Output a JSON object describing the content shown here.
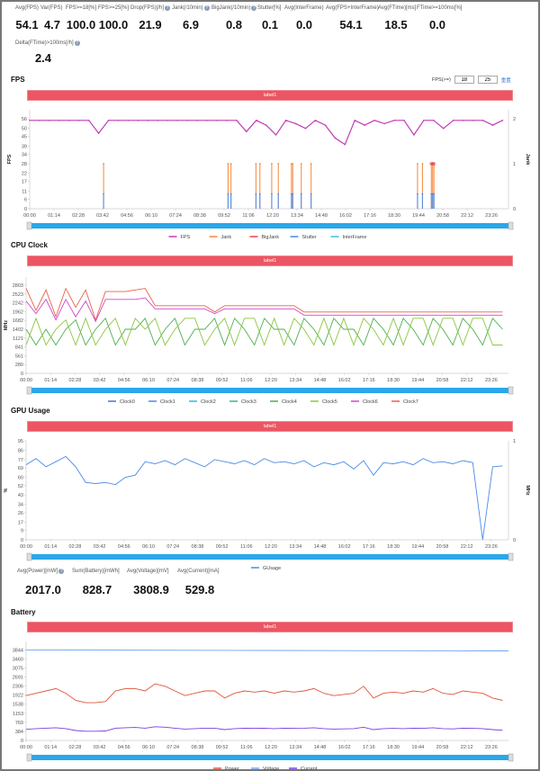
{
  "stats_top": [
    {
      "label": "Avg(FPS)",
      "value": "54.1"
    },
    {
      "label": "Var(FPS)",
      "value": "4.7"
    },
    {
      "label": "FPS>=18[%]",
      "value": "100.0"
    },
    {
      "label": "FPS>=25[%]",
      "value": "100.0"
    },
    {
      "label": "Drop(FPS)[/h]",
      "value": "21.9",
      "help": true
    },
    {
      "label": "Jank(/10min)",
      "value": "6.9",
      "help": true
    },
    {
      "label": "BigJank(/10min)",
      "value": "0.8",
      "help": true
    },
    {
      "label": "Stutter[%]",
      "value": "0.1"
    },
    {
      "label": "Avg(InterFrame)",
      "value": "0.0"
    },
    {
      "label": "Avg(FPS+InterFrame)",
      "value": "54.1"
    },
    {
      "label": "Avg(FTime)[ms]",
      "value": "18.5"
    },
    {
      "label": "FTime>=100ms[%]",
      "value": "0.0"
    },
    {
      "label": "Delta(FTime)>100ms[/h]",
      "value": "2.4",
      "help": true
    }
  ],
  "stats_battery": [
    {
      "label": "Avg(Power)[mW]",
      "value": "2017.0",
      "help": true
    },
    {
      "label": "Sum(Battery)[mWh]",
      "value": "828.7"
    },
    {
      "label": "Avg(Voltage)[mV]",
      "value": "3808.9"
    },
    {
      "label": "Avg(Current)[mA]",
      "value": "529.8"
    }
  ],
  "fps_controls": {
    "label": "FPS(>=)",
    "low": "18",
    "high": "25",
    "reset": "重置"
  },
  "sections": {
    "fps": "FPS",
    "cpu": "CPU Clock",
    "gpu": "GPU Usage",
    "battery": "Battery",
    "label_bar": "label1"
  },
  "chart_data": [
    {
      "id": "fps",
      "type": "line",
      "title": "FPS",
      "ylabel": "FPS",
      "y2label": "Jank",
      "ylim": [
        0,
        61.6
      ],
      "y2lim": [
        0,
        2.2
      ],
      "yticks": [
        0,
        6,
        11,
        17,
        22,
        28,
        34,
        39,
        45,
        50,
        56
      ],
      "y2ticks": [
        0,
        1,
        2
      ],
      "xlim_min": [
        0,
        1458
      ],
      "xticks": [
        "00:00",
        "01:14",
        "02:28",
        "03:42",
        "04:56",
        "06:10",
        "07:24",
        "08:38",
        "09:52",
        "11:06",
        "12:20",
        "13:34",
        "14:48",
        "16:02",
        "17:16",
        "18:30",
        "19:44",
        "20:58",
        "22:12",
        "23:26"
      ],
      "x_step_min": 30,
      "series": [
        {
          "name": "FPS",
          "color": "#c23bb5",
          "values": [
            55,
            55,
            55,
            55,
            55,
            55,
            55,
            47,
            55,
            55,
            55,
            55,
            55,
            55,
            55,
            55,
            55,
            55,
            55,
            55,
            55,
            55,
            48,
            55,
            52,
            46,
            55,
            53,
            50,
            55,
            52,
            44,
            40,
            55,
            52,
            55,
            53,
            55,
            55,
            46,
            55,
            55,
            50,
            55,
            55,
            55,
            55,
            52,
            55
          ]
        },
        {
          "name": "Jank",
          "color": "#f5873a",
          "axis": "right",
          "spikes_min": [
            225,
            604,
            613,
            689,
            701,
            737,
            757,
            797,
            801,
            827,
            857,
            1181,
            1196,
            1223,
            1227,
            1231
          ],
          "spike_value": 1
        },
        {
          "name": "BigJank",
          "color": "#e8434e",
          "axis": "right",
          "spikes_min": [
            1223,
            1227,
            1231
          ],
          "spike_value": 1,
          "marker_only": true
        },
        {
          "name": "Stutter",
          "color": "#4a8be8",
          "axis": "right",
          "spikes_min": [
            225,
            604,
            613,
            689,
            701,
            737,
            757,
            797,
            801,
            827,
            857,
            1181,
            1196,
            1223,
            1227,
            1231
          ],
          "spike_value": 0.33
        },
        {
          "name": "InterFrame",
          "color": "#35c3d8",
          "values": []
        }
      ]
    },
    {
      "id": "cpu",
      "type": "line",
      "title": "CPU Clock",
      "ylabel": "MHz",
      "ylim": [
        0,
        3060
      ],
      "yticks": [
        0,
        280,
        561,
        841,
        1121,
        1402,
        1682,
        1962,
        2242,
        2523,
        2803
      ],
      "xlim_min": [
        0,
        1458
      ],
      "xticks": [
        "00:00",
        "01:14",
        "02:28",
        "03:42",
        "04:56",
        "06:10",
        "07:24",
        "08:38",
        "09:52",
        "11:06",
        "12:20",
        "13:34",
        "14:48",
        "16:02",
        "17:16",
        "18:30",
        "19:44",
        "20:58",
        "22:12",
        "23:26"
      ],
      "x_step_min": 30,
      "series": [
        {
          "name": "Clock0",
          "color": "#5470c6",
          "values": []
        },
        {
          "name": "Clock1",
          "color": "#4a8be8",
          "values": []
        },
        {
          "name": "Clock2",
          "color": "#35b5e8",
          "values": []
        },
        {
          "name": "Clock3",
          "color": "#3bb58f",
          "values": []
        },
        {
          "name": "Clock4",
          "color": "#4caf50",
          "values": [
            1400,
            900,
            1400,
            900,
            1400,
            1700,
            900,
            1400,
            1750,
            900,
            1400,
            1400,
            1750,
            900,
            1400,
            1750,
            900,
            1400,
            1400,
            1750,
            900,
            1750,
            1400,
            900,
            1750,
            1400,
            1400,
            900,
            1750,
            1400,
            900,
            1750,
            1400,
            1400,
            900,
            1750,
            1400,
            900,
            1750,
            1400,
            900,
            1750,
            1400,
            900,
            1750,
            1400,
            900,
            1750,
            1400
          ]
        },
        {
          "name": "Clock5",
          "color": "#8cc63f",
          "values": [
            900,
            1750,
            900,
            1400,
            1700,
            900,
            1750,
            900,
            1400,
            1750,
            900,
            1750,
            1400,
            1750,
            900,
            1400,
            1750,
            1750,
            900,
            1400,
            1750,
            900,
            1750,
            1750,
            900,
            1750,
            900,
            1750,
            1400,
            900,
            1750,
            900,
            1750,
            900,
            1750,
            1400,
            900,
            1750,
            900,
            1750,
            1750,
            900,
            1750,
            1750,
            900,
            1750,
            1750,
            900,
            900
          ]
        },
        {
          "name": "Clock6",
          "color": "#d048c8",
          "values": [
            2300,
            1900,
            2350,
            1700,
            2350,
            1800,
            2300,
            1650,
            2350,
            2350,
            2350,
            2350,
            2400,
            2050,
            2050,
            2050,
            2050,
            2050,
            2050,
            1900,
            2050,
            2050,
            2050,
            2050,
            2050,
            2050,
            2050,
            2050,
            1850,
            1850,
            1850,
            1850,
            1850,
            1850,
            1850,
            1850,
            1850,
            1850,
            1850,
            1850,
            1850,
            1850,
            1850,
            1850,
            1850,
            1850,
            1850,
            1850,
            1850
          ]
        },
        {
          "name": "Clock7",
          "color": "#e8604a",
          "values": [
            2700,
            2000,
            2650,
            1800,
            2700,
            2100,
            2650,
            1700,
            2600,
            2600,
            2600,
            2650,
            2700,
            2150,
            2150,
            2150,
            2150,
            2150,
            2150,
            1950,
            2150,
            2150,
            2150,
            2150,
            2150,
            2150,
            2150,
            2150,
            1950,
            1950,
            1950,
            1950,
            1950,
            1950,
            1950,
            1950,
            1950,
            1950,
            1950,
            1950,
            1950,
            1950,
            1950,
            1950,
            1950,
            1950,
            1950,
            1950,
            1950
          ]
        }
      ]
    },
    {
      "id": "gpu",
      "type": "line",
      "title": "GPU Usage",
      "ylabel": "%",
      "y2label": "MHz",
      "ylim": [
        0,
        95
      ],
      "y2lim": [
        0,
        1
      ],
      "yticks": [
        0,
        9,
        17,
        26,
        34,
        43,
        52,
        60,
        69,
        77,
        86,
        95
      ],
      "y2ticks": [
        0,
        1
      ],
      "xlim_min": [
        0,
        1458
      ],
      "xticks": [
        "00:00",
        "01:14",
        "02:28",
        "03:42",
        "04:56",
        "06:10",
        "07:24",
        "08:38",
        "09:52",
        "11:06",
        "12:20",
        "13:34",
        "14:48",
        "16:02",
        "17:16",
        "18:30",
        "19:44",
        "20:58",
        "22:12",
        "23:26"
      ],
      "x_step_min": 30,
      "series": [
        {
          "name": "GUsage",
          "color": "#4a8be8",
          "values": [
            72,
            78,
            70,
            75,
            80,
            70,
            55,
            54,
            55,
            53,
            60,
            62,
            75,
            73,
            76,
            72,
            78,
            74,
            70,
            77,
            75,
            73,
            76,
            72,
            78,
            74,
            75,
            73,
            76,
            70,
            74,
            72,
            75,
            68,
            76,
            62,
            74,
            73,
            75,
            72,
            78,
            74,
            75,
            73,
            76,
            74,
            0,
            70,
            71
          ]
        }
      ]
    },
    {
      "id": "battery",
      "type": "line",
      "title": "Battery",
      "ylim": [
        0,
        4200
      ],
      "yticks": [
        0,
        384,
        769,
        1153,
        1538,
        1922,
        2306,
        2691,
        3075,
        3460,
        3844
      ],
      "xlim_min": [
        0,
        1458
      ],
      "xticks": [
        "00:00",
        "01:14",
        "02:28",
        "03:42",
        "04:56",
        "06:10",
        "07:24",
        "08:38",
        "09:52",
        "11:06",
        "12:20",
        "13:34",
        "14:48",
        "16:02",
        "17:16",
        "18:30",
        "19:44",
        "20:58",
        "22:12",
        "23:26"
      ],
      "x_step_min": 30,
      "series": [
        {
          "name": "Power",
          "color": "#e0553a",
          "values": [
            1900,
            2000,
            2100,
            2200,
            2000,
            1700,
            1600,
            1600,
            1650,
            2100,
            2200,
            2200,
            2100,
            2400,
            2300,
            2100,
            1900,
            2000,
            2100,
            2100,
            1800,
            2000,
            2100,
            2050,
            2100,
            2000,
            2100,
            2050,
            2100,
            2200,
            2000,
            1900,
            1950,
            2000,
            2300,
            1800,
            2000,
            2050,
            2000,
            2100,
            2050,
            2200,
            2000,
            1950,
            2100,
            2050,
            2000,
            1800,
            1700
          ]
        },
        {
          "name": "Voltage",
          "color": "#6aa8f0",
          "values": [
            3840,
            3820,
            3800
          ],
          "t_min": [
            0,
            729,
            1458
          ]
        },
        {
          "name": "Current",
          "color": "#7b3fe0",
          "values": [
            470,
            500,
            520,
            540,
            500,
            420,
            390,
            390,
            400,
            520,
            540,
            550,
            520,
            580,
            560,
            520,
            480,
            500,
            520,
            520,
            460,
            500,
            520,
            510,
            520,
            500,
            520,
            510,
            520,
            540,
            500,
            480,
            490,
            500,
            560,
            460,
            500,
            510,
            500,
            520,
            510,
            540,
            500,
            490,
            520,
            510,
            500,
            460,
            430
          ]
        }
      ]
    }
  ]
}
